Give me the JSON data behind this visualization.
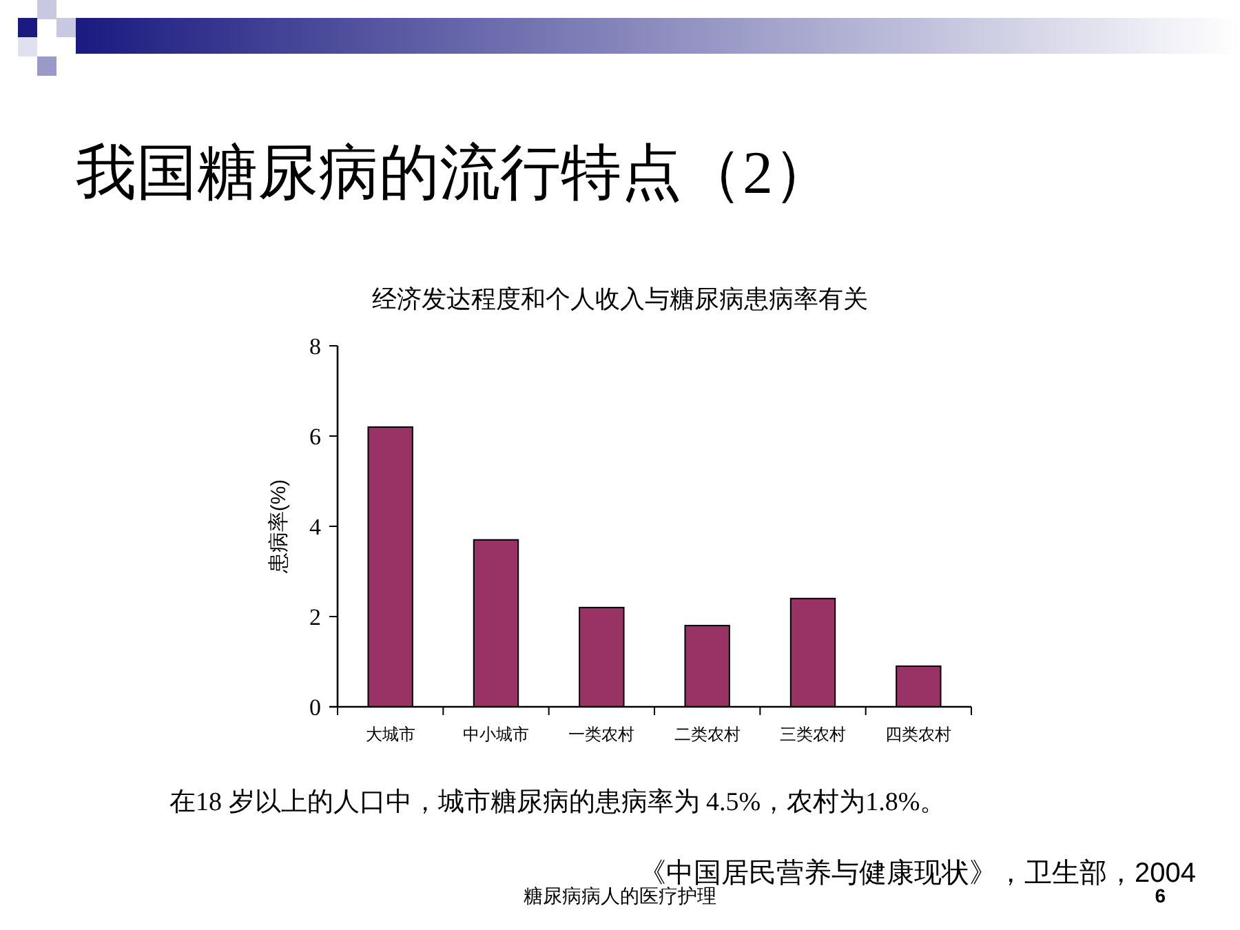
{
  "chart_data": {
    "type": "bar",
    "title": "我国糖尿病的流行特点（2）",
    "subtitle": "经济发达程度和个人收入与糖尿病患病率有关",
    "ylabel": "患病率(%)",
    "categories": [
      "大城市",
      "中小城市",
      "一类农村",
      "二类农村",
      "三类农村",
      "四类农村"
    ],
    "values": [
      6.2,
      3.7,
      2.2,
      1.8,
      2.4,
      0.9
    ],
    "color": "#993366",
    "ylim": [
      0,
      8
    ],
    "yticks": [
      0,
      2,
      4,
      6,
      8
    ],
    "annotations": [
      "在18 岁以上的人口中，城市糖尿病的患病率为 4.5%，农村为1.8%。",
      "《中国居民营养与健康现状》，卫生部，2004",
      "糖尿病病人的医疗护理",
      "6"
    ]
  }
}
